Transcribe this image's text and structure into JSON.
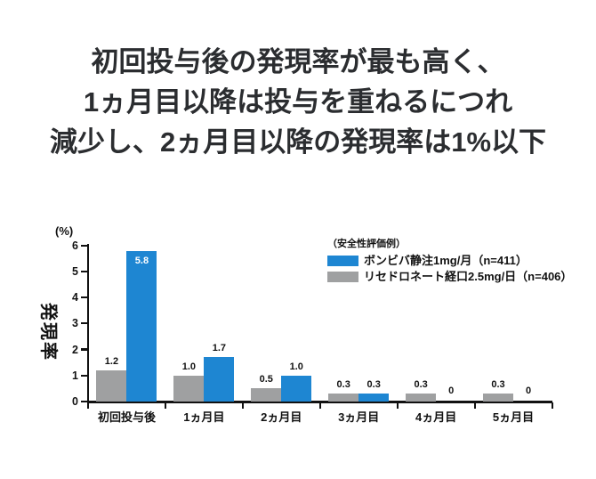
{
  "title": {
    "lines": [
      "初回投与後の発現率が最も高く、",
      "1ヵ月目以降は投与を重ねるにつれ",
      "減少し、2ヵ月目以降の発現率は1%以下"
    ]
  },
  "chart_data": {
    "type": "bar",
    "title": "",
    "xlabel": "",
    "ylabel": "発現率",
    "y_unit": "(%)",
    "ylim": [
      0,
      6
    ],
    "yticks": [
      0,
      1,
      2,
      3,
      4,
      5,
      6
    ],
    "grid": false,
    "categories": [
      "初回投与後",
      "1ヵ月目",
      "2ヵ月目",
      "3ヵ月目",
      "4ヵ月目",
      "5ヵ月目"
    ],
    "series": [
      {
        "name": "リセドロネート経口2.5mg/日（n=406）",
        "color": "#9fa0a1",
        "values": [
          1.2,
          1.0,
          0.5,
          0.3,
          0.3,
          0.3
        ],
        "labels": [
          "1.2",
          "1.0",
          "0.5",
          "0.3",
          "0.3",
          "0.3"
        ]
      },
      {
        "name": "ボンビバ静注1mg/月（n=411）",
        "color": "#1e86d2",
        "values": [
          5.8,
          1.7,
          1.0,
          0.3,
          0,
          0
        ],
        "labels": [
          "5.8",
          "1.7",
          "1.0",
          "0.3",
          "0",
          "0"
        ]
      }
    ],
    "legend": {
      "heading": "（安全性評価例）",
      "position": "upper-right",
      "items": [
        {
          "label": "ボンビバ静注1mg/月（n=411）",
          "color": "#1e86d2"
        },
        {
          "label": "リセドロネート経口2.5mg/日（n=406）",
          "color": "#9fa0a1"
        }
      ]
    }
  }
}
